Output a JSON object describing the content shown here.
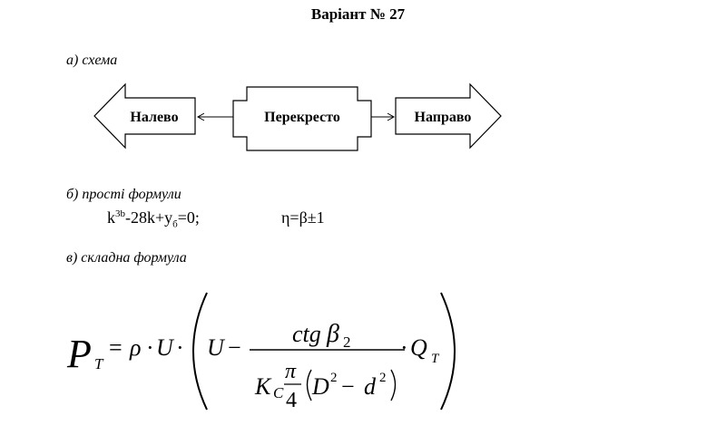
{
  "title": "Варіант № 27",
  "section_a": {
    "label": "а) схема"
  },
  "diagram": {
    "left_node": "Налево",
    "center_node": "Перекресто",
    "right_node": "Направо"
  },
  "section_b": {
    "label": "б) прості формули",
    "formula1": {
      "k": "k",
      "k_sup": "3b",
      "middle": "-28k+y",
      "y_sub": "б",
      "tail": "=0;"
    },
    "formula2": "η=β±1"
  },
  "section_c": {
    "label": "в) складна формула",
    "formula": {
      "P": "P",
      "P_sub": "T",
      "eq": "=",
      "rho": "ρ",
      "dot1": "·",
      "U1": "U",
      "dot2": "·",
      "U2": "U",
      "minus": "−",
      "num_ctg": "ctg",
      "num_beta": "β",
      "num_sub": "2",
      "den_K": "K",
      "den_K_sub": "C",
      "pi": "π",
      "four": "4",
      "D": "D",
      "D_sup": "2",
      "minus2": "−",
      "d": "d",
      "d_sup": "2",
      "dot3": "·",
      "Q": "Q",
      "Q_sub": "T"
    }
  }
}
